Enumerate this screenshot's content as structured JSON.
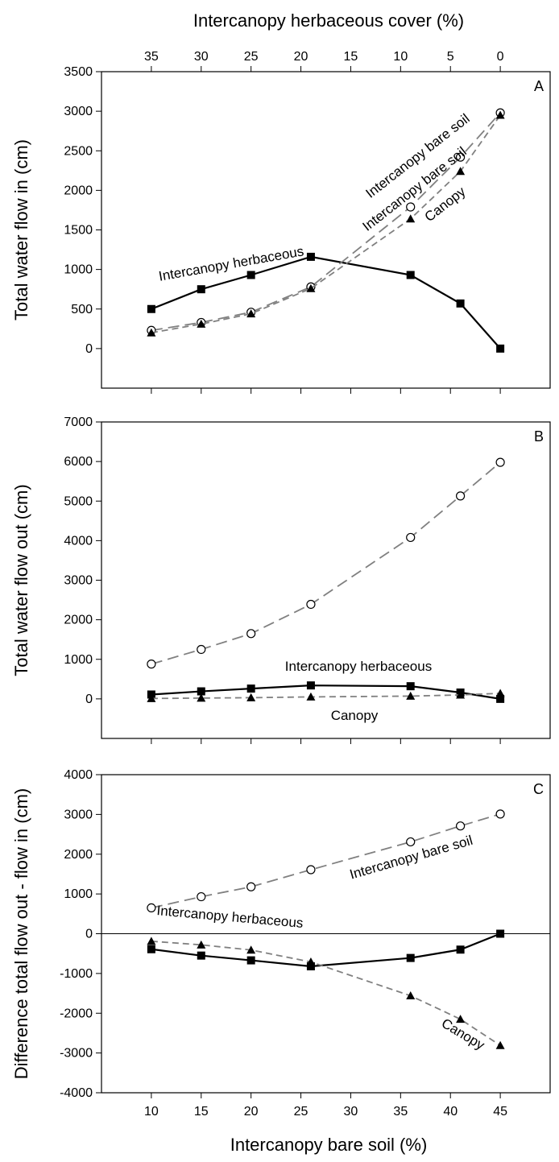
{
  "figure": {
    "top_xlabel": "Intercanopy herbaceous cover (%)",
    "bottom_xlabel": "Intercanopy bare soil (%)"
  },
  "chart_data": [
    {
      "panel": "A",
      "type": "line",
      "ylabel": "Total water flow in (cm)",
      "ylim": [
        -500,
        3500
      ],
      "yticks": [
        0,
        500,
        1000,
        1500,
        2000,
        2500,
        3000,
        3500
      ],
      "x": [
        10,
        15,
        20,
        26,
        36,
        41,
        45
      ],
      "xlim": [
        5,
        50
      ],
      "top_axis": {
        "label": "Intercanopy herbaceous cover (%)",
        "ticks": [
          35,
          30,
          25,
          20,
          15,
          10,
          5,
          0
        ]
      },
      "series": [
        {
          "name": "Intercanopy herbaceous",
          "marker": "square",
          "line": "solid",
          "color": "#000000",
          "values": [
            500,
            750,
            930,
            1160,
            930,
            570,
            0
          ]
        },
        {
          "name": "Intercanopy bare soil",
          "marker": "circle-open",
          "line": "long-dash",
          "color": "#808080",
          "values": [
            230,
            330,
            460,
            780,
            1790,
            2420,
            2980
          ]
        },
        {
          "name": "Canopy",
          "marker": "triangle",
          "line": "short-dash",
          "color": "#808080",
          "values": [
            200,
            310,
            440,
            760,
            1640,
            2240,
            2950
          ]
        }
      ]
    },
    {
      "panel": "B",
      "type": "line",
      "ylabel": "Total water flow out (cm)",
      "ylim": [
        -1000,
        7000
      ],
      "yticks": [
        0,
        1000,
        2000,
        3000,
        4000,
        5000,
        6000,
        7000
      ],
      "x": [
        10,
        15,
        20,
        26,
        36,
        41,
        45
      ],
      "xlim": [
        5,
        50
      ],
      "series": [
        {
          "name": "Intercanopy bare soil",
          "marker": "circle-open",
          "line": "long-dash",
          "color": "#808080",
          "values": [
            880,
            1250,
            1650,
            2390,
            4080,
            5130,
            5980
          ]
        },
        {
          "name": "Intercanopy herbaceous",
          "marker": "square",
          "line": "solid",
          "color": "#000000",
          "values": [
            110,
            190,
            260,
            340,
            320,
            160,
            0
          ]
        },
        {
          "name": "Canopy",
          "marker": "triangle",
          "line": "short-dash",
          "color": "#808080",
          "values": [
            10,
            20,
            30,
            50,
            70,
            100,
            140
          ]
        }
      ]
    },
    {
      "panel": "C",
      "type": "line",
      "ylabel": "Difference total flow out - flow in (cm)",
      "ylim": [
        -4000,
        4000
      ],
      "yticks": [
        -4000,
        -3000,
        -2000,
        -1000,
        0,
        1000,
        2000,
        3000,
        4000
      ],
      "x": [
        10,
        15,
        20,
        26,
        36,
        41,
        45
      ],
      "xlim": [
        5,
        50
      ],
      "xlabel": "Intercanopy bare soil (%)",
      "xticks": [
        10,
        15,
        20,
        25,
        30,
        35,
        40,
        45
      ],
      "zero_line": true,
      "series": [
        {
          "name": "Intercanopy bare soil",
          "marker": "circle-open",
          "line": "long-dash",
          "color": "#808080",
          "values": [
            650,
            930,
            1180,
            1610,
            2310,
            2710,
            3010
          ]
        },
        {
          "name": "Intercanopy herbaceous",
          "marker": "square",
          "line": "solid",
          "color": "#000000",
          "values": [
            -390,
            -550,
            -670,
            -820,
            -610,
            -400,
            0
          ]
        },
        {
          "name": "Canopy",
          "marker": "triangle",
          "line": "short-dash",
          "color": "#808080",
          "values": [
            -190,
            -280,
            -410,
            -710,
            -1560,
            -2150,
            -2810
          ]
        }
      ]
    }
  ]
}
